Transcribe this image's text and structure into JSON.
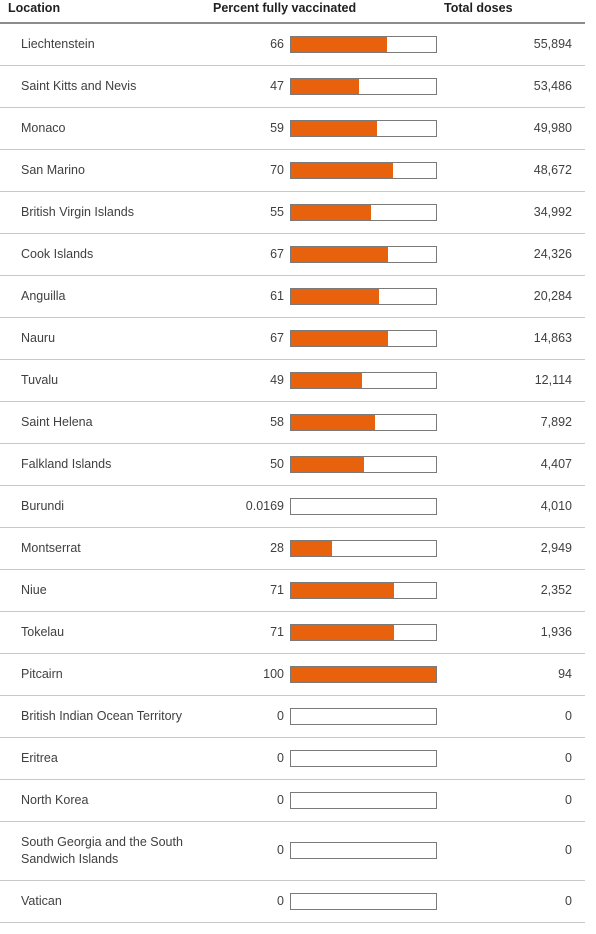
{
  "header": {
    "location": "Location",
    "percent": "Percent fully vaccinated",
    "total": "Total doses"
  },
  "colors": {
    "bar_fill": "#e8620e",
    "bar_border": "#7a7a7a"
  },
  "chart_data": {
    "type": "table",
    "columns": [
      "Location",
      "Percent fully vaccinated",
      "Total doses"
    ],
    "rows": [
      {
        "location": "Liechtenstein",
        "percent_label": "66",
        "percent": 66,
        "total": "55,894"
      },
      {
        "location": "Saint Kitts and Nevis",
        "percent_label": "47",
        "percent": 47,
        "total": "53,486"
      },
      {
        "location": "Monaco",
        "percent_label": "59",
        "percent": 59,
        "total": "49,980"
      },
      {
        "location": "San Marino",
        "percent_label": "70",
        "percent": 70,
        "total": "48,672"
      },
      {
        "location": "British Virgin Islands",
        "percent_label": "55",
        "percent": 55,
        "total": "34,992"
      },
      {
        "location": "Cook Islands",
        "percent_label": "67",
        "percent": 67,
        "total": "24,326"
      },
      {
        "location": "Anguilla",
        "percent_label": "61",
        "percent": 61,
        "total": "20,284"
      },
      {
        "location": "Nauru",
        "percent_label": "67",
        "percent": 67,
        "total": "14,863"
      },
      {
        "location": "Tuvalu",
        "percent_label": "49",
        "percent": 49,
        "total": "12,114"
      },
      {
        "location": "Saint Helena",
        "percent_label": "58",
        "percent": 58,
        "total": "7,892"
      },
      {
        "location": "Falkland Islands",
        "percent_label": "50",
        "percent": 50,
        "total": "4,407"
      },
      {
        "location": "Burundi",
        "percent_label": "0.0169",
        "percent": 0.0169,
        "total": "4,010"
      },
      {
        "location": "Montserrat",
        "percent_label": "28",
        "percent": 28,
        "total": "2,949"
      },
      {
        "location": "Niue",
        "percent_label": "71",
        "percent": 71,
        "total": "2,352"
      },
      {
        "location": "Tokelau",
        "percent_label": "71",
        "percent": 71,
        "total": "1,936"
      },
      {
        "location": "Pitcairn",
        "percent_label": "100",
        "percent": 100,
        "total": "94"
      },
      {
        "location": "British Indian Ocean Territory",
        "percent_label": "0",
        "percent": 0,
        "total": "0"
      },
      {
        "location": "Eritrea",
        "percent_label": "0",
        "percent": 0,
        "total": "0"
      },
      {
        "location": "North Korea",
        "percent_label": "0",
        "percent": 0,
        "total": "0"
      },
      {
        "location": "South Georgia and the South Sandwich Islands",
        "percent_label": "0",
        "percent": 0,
        "total": "0"
      },
      {
        "location": "Vatican",
        "percent_label": "0",
        "percent": 0,
        "total": "0"
      }
    ]
  }
}
